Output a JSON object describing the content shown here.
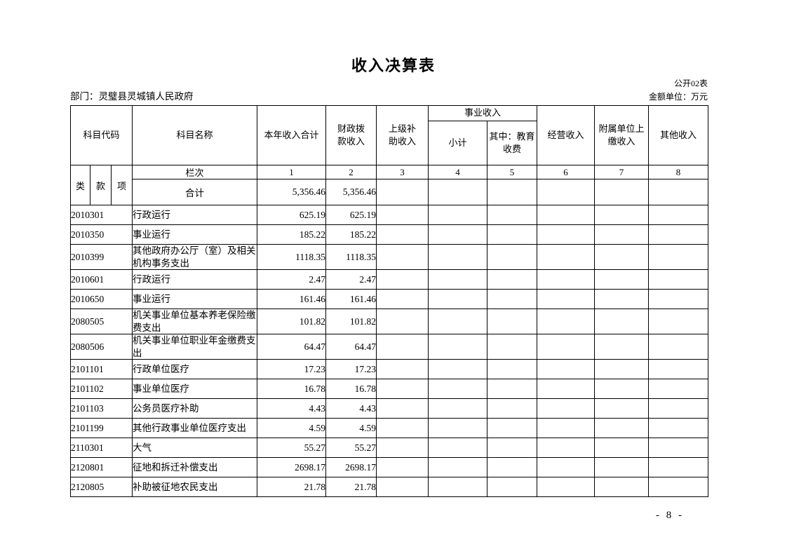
{
  "page": {
    "title": "收入决算表",
    "table_code": "公开02表",
    "department": "部门：灵璧县灵城镇人民政府",
    "unit": "金额单位：万元",
    "page_number": "- 8 -"
  },
  "table": {
    "header": {
      "subject_code": "科目代码",
      "code_sub": [
        "类",
        "款",
        "项"
      ],
      "subject_name": "科目名称",
      "total_income": "本年收入合计",
      "fiscal_income": "财政拨\n款收入",
      "subsidy_income": "上级补\n助收入",
      "business_income": "事业收入",
      "business_subtotal": "小计",
      "business_education": "其中：教育\n收费",
      "operating_income": "经营收入",
      "affiliated_income": "附属单位上\n缴收入",
      "other_income": "其他收入"
    },
    "lanci": {
      "label": "栏次",
      "cols": [
        "1",
        "2",
        "3",
        "4",
        "5",
        "6",
        "7",
        "8"
      ]
    },
    "total": {
      "label": "合计",
      "values": [
        "5,356.46",
        "5,356.46",
        "",
        "",
        "",
        "",
        "",
        ""
      ]
    },
    "rows": [
      {
        "code": "2010301",
        "name": "行政运行",
        "values": [
          "625.19",
          "625.19",
          "",
          "",
          "",
          "",
          "",
          ""
        ]
      },
      {
        "code": "2010350",
        "name": "事业运行",
        "values": [
          "185.22",
          "185.22",
          "",
          "",
          "",
          "",
          "",
          ""
        ]
      },
      {
        "code": "2010399",
        "name": "其他政府办公厅（室）及相关机构事务支出",
        "values": [
          "1118.35",
          "1118.35",
          "",
          "",
          "",
          "",
          "",
          ""
        ]
      },
      {
        "code": "2010601",
        "name": "行政运行",
        "values": [
          "2.47",
          "2.47",
          "",
          "",
          "",
          "",
          "",
          ""
        ]
      },
      {
        "code": "2010650",
        "name": "事业运行",
        "values": [
          "161.46",
          "161.46",
          "",
          "",
          "",
          "",
          "",
          ""
        ]
      },
      {
        "code": "2080505",
        "name": "机关事业单位基本养老保险缴费支出",
        "values": [
          "101.82",
          "101.82",
          "",
          "",
          "",
          "",
          "",
          ""
        ]
      },
      {
        "code": "2080506",
        "name": "机关事业单位职业年金缴费支出",
        "values": [
          "64.47",
          "64.47",
          "",
          "",
          "",
          "",
          "",
          ""
        ]
      },
      {
        "code": "2101101",
        "name": "行政单位医疗",
        "values": [
          "17.23",
          "17.23",
          "",
          "",
          "",
          "",
          "",
          ""
        ]
      },
      {
        "code": "2101102",
        "name": "事业单位医疗",
        "values": [
          "16.78",
          "16.78",
          "",
          "",
          "",
          "",
          "",
          ""
        ]
      },
      {
        "code": "2101103",
        "name": "公务员医疗补助",
        "values": [
          "4.43",
          "4.43",
          "",
          "",
          "",
          "",
          "",
          ""
        ]
      },
      {
        "code": "2101199",
        "name": "其他行政事业单位医疗支出",
        "values": [
          "4.59",
          "4.59",
          "",
          "",
          "",
          "",
          "",
          ""
        ]
      },
      {
        "code": "2110301",
        "name": "大气",
        "values": [
          "55.27",
          "55.27",
          "",
          "",
          "",
          "",
          "",
          ""
        ]
      },
      {
        "code": "2120801",
        "name": "征地和拆迁补偿支出",
        "values": [
          "2698.17",
          "2698.17",
          "",
          "",
          "",
          "",
          "",
          ""
        ]
      },
      {
        "code": "2120805",
        "name": "补助被征地农民支出",
        "values": [
          "21.78",
          "21.78",
          "",
          "",
          "",
          "",
          "",
          ""
        ]
      }
    ]
  }
}
